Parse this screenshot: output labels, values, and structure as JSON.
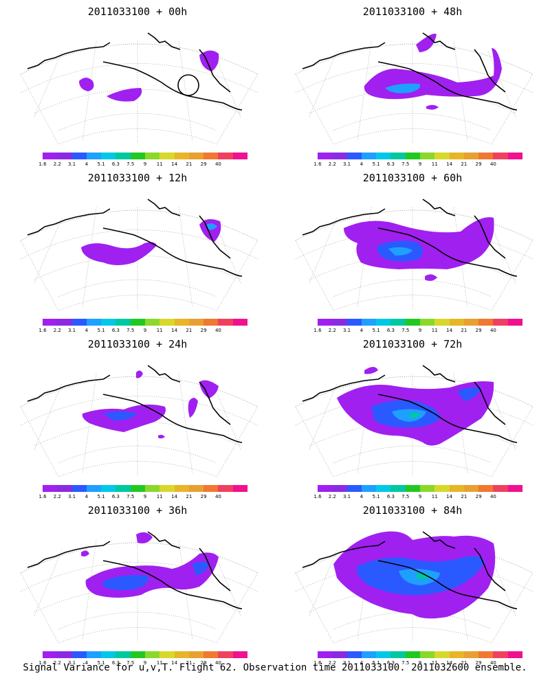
{
  "colorbar": {
    "colors": [
      "#a020f0",
      "#8a2be2",
      "#2a5aff",
      "#1ea0ff",
      "#00c8e6",
      "#00c8a0",
      "#22c822",
      "#8ad82a",
      "#d8d82a",
      "#e8b428",
      "#e8a030",
      "#f07830",
      "#f04060",
      "#f01090"
    ],
    "ticks": [
      "1.6",
      "2.2",
      "3.1",
      "4",
      "5.1",
      "6.3",
      "7.5",
      "9",
      "11",
      "14",
      "21",
      "29",
      "40"
    ]
  },
  "panels": [
    {
      "title": "2011033100 + 00h"
    },
    {
      "title": "2011033100 + 48h"
    },
    {
      "title": "2011033100 + 12h"
    },
    {
      "title": "2011033100 + 60h"
    },
    {
      "title": "2011033100 + 24h"
    },
    {
      "title": "2011033100 + 72h"
    },
    {
      "title": "2011033100 + 36h"
    },
    {
      "title": "2011033100 + 84h"
    }
  ],
  "footer": "Signal Variance for u,v,T. Flight 62. Observation time 2011033100. 2011032600 ensemble."
}
